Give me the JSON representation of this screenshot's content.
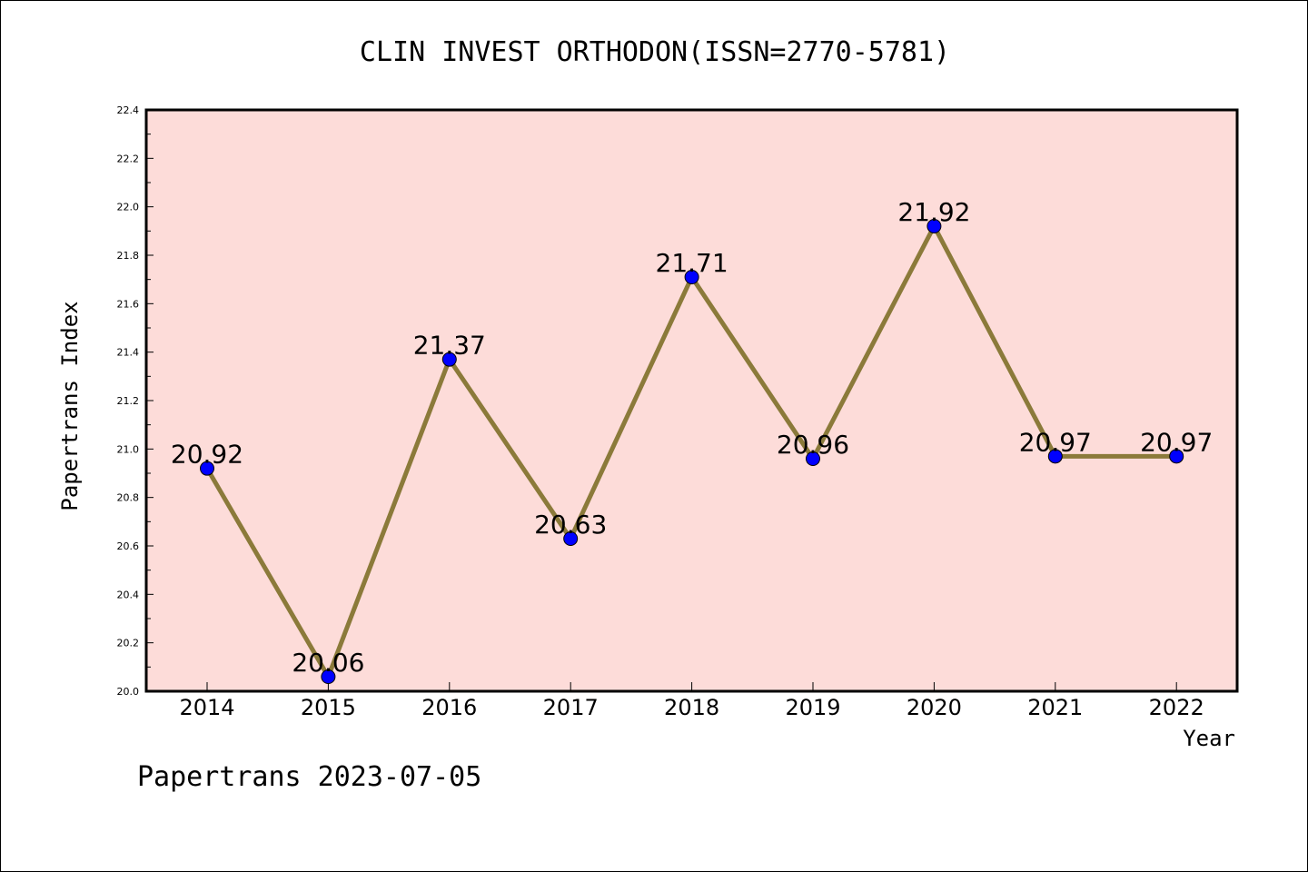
{
  "chart_data": {
    "type": "line",
    "title": "CLIN INVEST ORTHODON(ISSN=2770-5781)",
    "xlabel": "Year",
    "ylabel": "Papertrans Index",
    "categories": [
      "2014",
      "2015",
      "2016",
      "2017",
      "2018",
      "2019",
      "2020",
      "2021",
      "2022"
    ],
    "series": [
      {
        "values": [
          20.92,
          20.06,
          21.37,
          20.63,
          21.71,
          20.96,
          21.92,
          20.97,
          20.97
        ],
        "data_labels": [
          "20.92",
          "20.06",
          "21.37",
          "20.63",
          "21.71",
          "20.96",
          "21.92",
          "20.97",
          "20.97"
        ],
        "line_color": "#8b7a3a",
        "marker_color": "#0000ff"
      }
    ],
    "ylim": [
      20.0,
      22.4
    ],
    "yticks": [
      "20.0",
      "20.2",
      "20.4",
      "20.6",
      "20.8",
      "21.0",
      "21.2",
      "21.4",
      "21.6",
      "21.8",
      "22.0",
      "22.2",
      "22.4"
    ],
    "plot_background": "#fddcd9",
    "grid": false
  },
  "footer": "Papertrans 2023-07-05"
}
